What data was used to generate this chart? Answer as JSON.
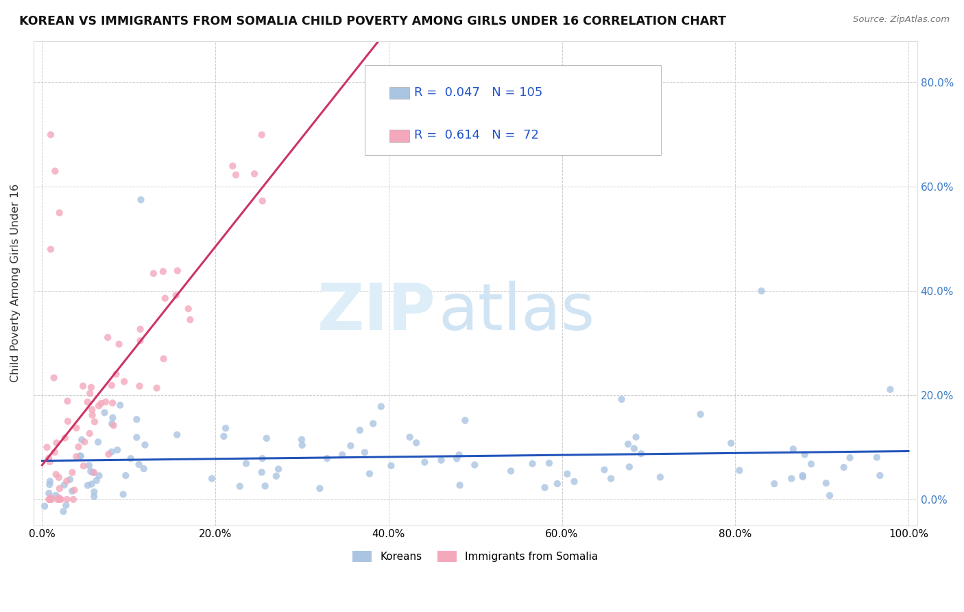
{
  "title": "KOREAN VS IMMIGRANTS FROM SOMALIA CHILD POVERTY AMONG GIRLS UNDER 16 CORRELATION CHART",
  "source": "Source: ZipAtlas.com",
  "ylabel": "Child Poverty Among Girls Under 16",
  "xlim": [
    -0.01,
    1.01
  ],
  "ylim": [
    -0.05,
    0.88
  ],
  "korean_R": 0.047,
  "korean_N": 105,
  "somalia_R": 0.614,
  "somalia_N": 72,
  "korean_color": "#aac4e2",
  "somalia_color": "#f4a8bc",
  "korean_line_color": "#2255bb",
  "somalia_line_color": "#cc3366",
  "xticks": [
    0.0,
    0.2,
    0.4,
    0.6,
    0.8,
    1.0
  ],
  "xtick_labels": [
    "0.0%",
    "20.0%",
    "40.0%",
    "60.0%",
    "80.0%",
    "100.0%"
  ],
  "ytick_positions": [
    0.0,
    0.2,
    0.4,
    0.6,
    0.8
  ],
  "ytick_labels_left": [
    "",
    "",
    "",
    "",
    ""
  ],
  "ytick_labels_right": [
    "0.0%",
    "20.0%",
    "40.0%",
    "60.0%",
    "80.0%"
  ],
  "legend_box_R1": "R =  0.047   N = 105",
  "legend_box_R2": "R =  0.614   N =  72",
  "legend_korean": "Koreans",
  "legend_somalia": "Immigrants from Somalia"
}
